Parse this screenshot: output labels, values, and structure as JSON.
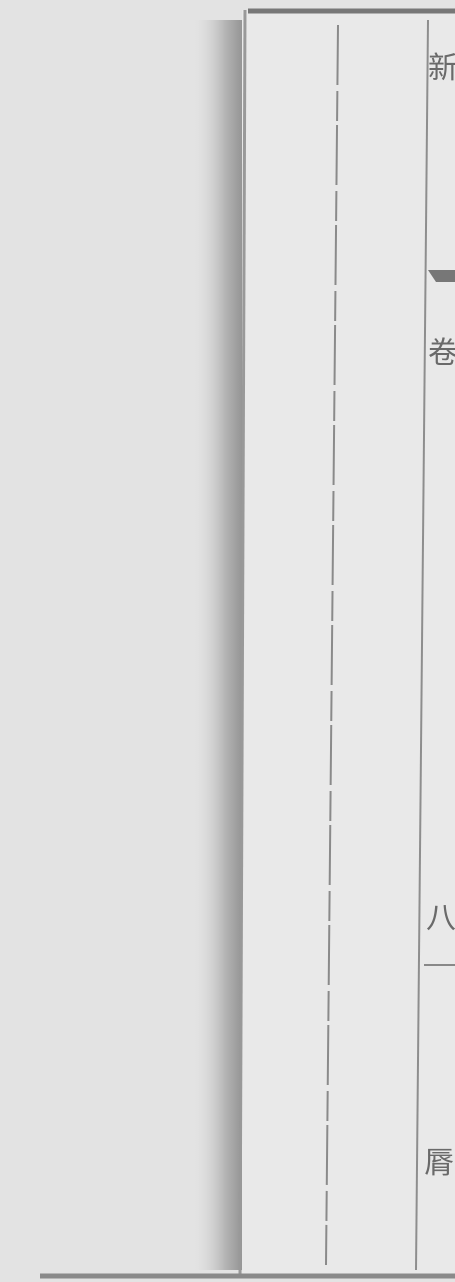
{
  "margin_text": [
    "新",
    "卷",
    "八",
    "脣"
  ]
}
